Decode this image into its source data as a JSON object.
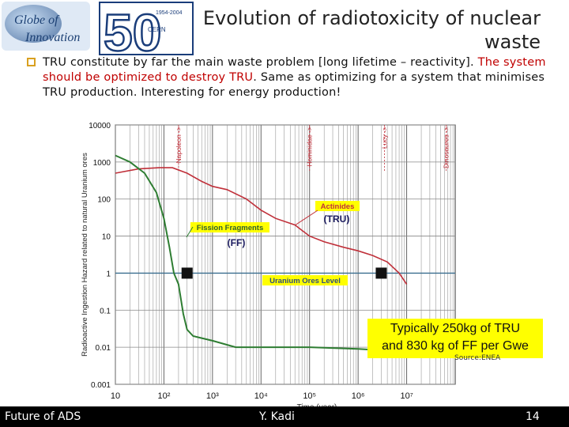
{
  "header": {
    "title_line1": "Evolution of radiotoxicity of nuclear",
    "title_line2": "waste",
    "logo_globe_line1": "Globe of",
    "logo_globe_line2": "Innovation",
    "logo_50": "50",
    "logo_years": "1954-2004",
    "logo_cern": "CERN"
  },
  "bullet": {
    "part1": "TRU constitute by far the main waste problem [long lifetime – reactivity].",
    "part2_red": "The system should be optimized to destroy TRU",
    "part3": ". Same as optimizing for a system that minimises TRU production. Interesting for energy production!"
  },
  "note": {
    "line1": "Typically 250kg of TRU",
    "line2": "and 830 kg of FF per Gwe"
  },
  "source": "Source:ENEA",
  "footer": {
    "left": "Future of ADS",
    "center": "Y. Kadi",
    "right": "14"
  },
  "colors": {
    "tru": "#c0303a",
    "ff": "#2e7d32",
    "uranium": "#3a6e8f",
    "accent": "#d9a020",
    "note_bg": "#ffff00"
  },
  "chart_data": {
    "type": "line",
    "xscale": "log",
    "yscale": "log",
    "xlabel": "Time (year)",
    "ylabel": "Radioactive Ingestion Hazard related to natural Uranium ores",
    "xlim": [
      10,
      100000000
    ],
    "ylim": [
      0.001,
      10000
    ],
    "x_ticks": [
      "10",
      "10²",
      "10³",
      "10⁴",
      "10⁵",
      "10⁶",
      "10⁷"
    ],
    "y_ticks": [
      "10000",
      "1000",
      "100",
      "10",
      "1",
      "0.1",
      "0.01",
      "0.001"
    ],
    "series": [
      {
        "name": "Actinides (TRU)",
        "points": [
          [
            10,
            500
          ],
          [
            30,
            650
          ],
          [
            80,
            700
          ],
          [
            150,
            700
          ],
          [
            300,
            500
          ],
          [
            600,
            300
          ],
          [
            1000,
            220
          ],
          [
            2000,
            180
          ],
          [
            5000,
            100
          ],
          [
            10000,
            50
          ],
          [
            20000,
            30
          ],
          [
            50000,
            20
          ],
          [
            100000,
            10
          ],
          [
            200000,
            7
          ],
          [
            500000,
            5
          ],
          [
            1000000,
            4
          ],
          [
            2000000,
            3
          ],
          [
            4000000,
            2
          ],
          [
            7000000,
            1
          ],
          [
            10000000,
            0.5
          ]
        ]
      },
      {
        "name": "Fission Fragments (FF)",
        "points": [
          [
            10,
            1500
          ],
          [
            20,
            1000
          ],
          [
            40,
            500
          ],
          [
            70,
            150
          ],
          [
            100,
            30
          ],
          [
            130,
            5
          ],
          [
            160,
            1
          ],
          [
            200,
            0.5
          ],
          [
            250,
            0.08
          ],
          [
            300,
            0.03
          ],
          [
            400,
            0.02
          ],
          [
            1000,
            0.015
          ],
          [
            3000,
            0.01
          ],
          [
            10000,
            0.01
          ],
          [
            100000,
            0.01
          ],
          [
            1000000,
            0.009
          ],
          [
            5000000,
            0.008
          ],
          [
            10000000,
            0.008
          ]
        ]
      },
      {
        "name": "Uranium Ores Level",
        "points": [
          [
            10,
            1
          ],
          [
            100000000,
            1
          ]
        ]
      }
    ],
    "markers": [
      {
        "x": 300,
        "y": 1
      },
      {
        "x": 3000000,
        "y": 1
      }
    ],
    "labels": {
      "actinides": "Actinides",
      "tru": "(TRU)",
      "ff_name": "Fission Fragments",
      "ff": "(FF)",
      "uranium": "Uranium Ores Level",
      "napoleon": "Napoleon ->",
      "hominidae": "Hominidae ->",
      "lucy": "Lucy ->",
      "dinosaures": "Dinosaures ->"
    },
    "epoch_markers": [
      {
        "key": "napoleon",
        "x": 200
      },
      {
        "key": "hominidae",
        "x": 100000
      },
      {
        "key": "lucy",
        "x": 3500000
      },
      {
        "key": "dinosaures",
        "x": 65000000
      }
    ]
  }
}
